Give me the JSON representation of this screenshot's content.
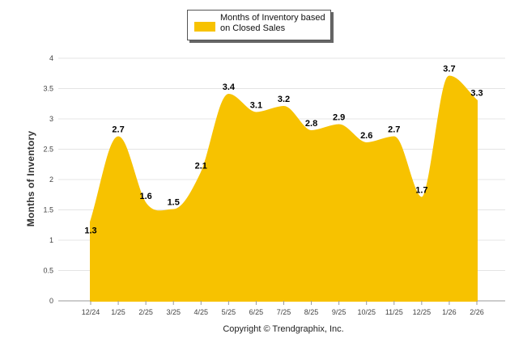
{
  "chart_data": {
    "type": "area",
    "categories": [
      "12/24",
      "1/25",
      "2/25",
      "3/25",
      "4/25",
      "5/25",
      "6/25",
      "7/25",
      "8/25",
      "9/25",
      "10/25",
      "11/25",
      "12/25",
      "1/26",
      "2/26"
    ],
    "series": [
      {
        "name": "Months of Inventory based on Closed Sales",
        "values": [
          1.3,
          2.7,
          1.6,
          1.5,
          2.1,
          3.4,
          3.1,
          3.2,
          2.8,
          2.9,
          2.6,
          2.7,
          1.7,
          3.7,
          3.3
        ],
        "labels": [
          "1.3",
          "2.7",
          "1.6",
          "1.5",
          "2.1",
          "3.4",
          "3.1",
          "3.2",
          "2.8",
          "2.9",
          "2.6",
          "2.7",
          "1.7",
          "3.7",
          "3.3"
        ],
        "color": "#F7C200"
      }
    ],
    "ylabel": "Months of Inventory",
    "xlabel": "",
    "ylim": [
      0,
      4
    ],
    "yticks": [
      "0",
      "0.5",
      "1",
      "1.5",
      "2",
      "2.5",
      "3",
      "3.5",
      "4"
    ],
    "grid": true,
    "legend": "top-center",
    "footer": "Copyright © Trendgraphix, Inc."
  }
}
